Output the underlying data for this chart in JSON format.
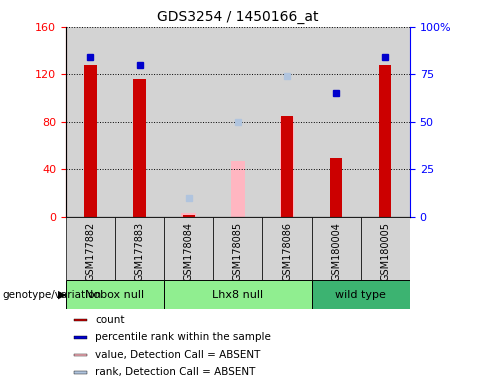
{
  "title": "GDS3254 / 1450166_at",
  "samples": [
    "GSM177882",
    "GSM177883",
    "GSM178084",
    "GSM178085",
    "GSM178086",
    "GSM180004",
    "GSM180005"
  ],
  "count_values": [
    128,
    116,
    2,
    null,
    85,
    50,
    128
  ],
  "percentile_values": [
    84,
    80,
    null,
    null,
    null,
    65,
    84
  ],
  "absent_value_values": [
    null,
    null,
    3,
    47,
    84,
    null,
    null
  ],
  "absent_rank_values": [
    null,
    null,
    10,
    50,
    74,
    null,
    null
  ],
  "ylim_left": [
    0,
    160
  ],
  "ylim_right": [
    0,
    100
  ],
  "yticks_left": [
    0,
    40,
    80,
    120,
    160
  ],
  "yticks_right": [
    0,
    25,
    50,
    75,
    100
  ],
  "yticklabels_right": [
    "0",
    "25",
    "50",
    "75",
    "100%"
  ],
  "count_color": "#CC0000",
  "percentile_color": "#0000CC",
  "absent_value_color": "#FFB6C1",
  "absent_rank_color": "#B0C4DE",
  "bg_color": "#D3D3D3",
  "group_info": [
    {
      "label": "Nobox null",
      "start": 0,
      "end": 1,
      "color": "#90EE90"
    },
    {
      "label": "Lhx8 null",
      "start": 2,
      "end": 4,
      "color": "#90EE90"
    },
    {
      "label": "wild type",
      "start": 5,
      "end": 6,
      "color": "#3CB371"
    }
  ],
  "legend_items": [
    {
      "label": "count",
      "color": "#CC0000"
    },
    {
      "label": "percentile rank within the sample",
      "color": "#0000CC"
    },
    {
      "label": "value, Detection Call = ABSENT",
      "color": "#FFB6C1"
    },
    {
      "label": "rank, Detection Call = ABSENT",
      "color": "#B0C4DE"
    }
  ],
  "bar_width": 0.25,
  "absent_bar_width": 0.3
}
